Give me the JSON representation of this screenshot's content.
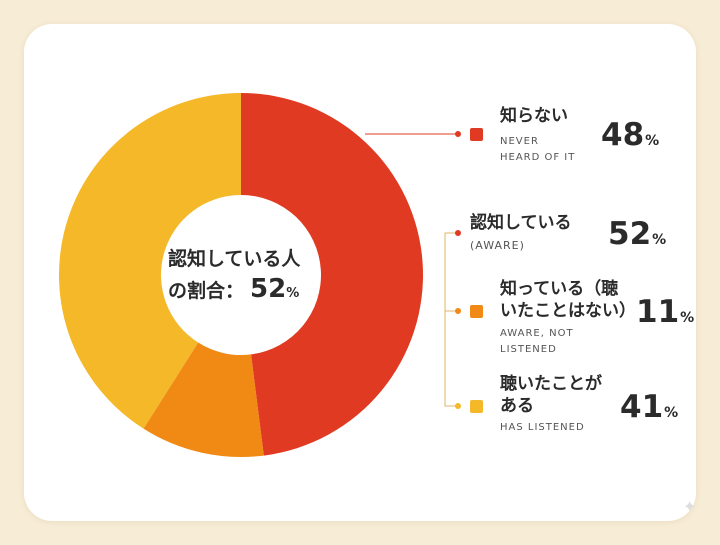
{
  "center": {
    "line1": "認知している人",
    "line2": "の割合：",
    "value": "52",
    "unit": "%"
  },
  "colors": {
    "never": "#e13a22",
    "aware_not_listened": "#f08a14",
    "listened": "#f4b828",
    "background": "#f7ecd6"
  },
  "legend": {
    "never": {
      "title": "知らない",
      "sub": "NEVER\nHEARD OF IT",
      "value": "48",
      "unit": "%"
    },
    "aware": {
      "title": "認知している",
      "sub": "(AWARE)",
      "value": "52",
      "unit": "%"
    },
    "aware_not_listened": {
      "title": "知っている（聴\nいたことはない）",
      "sub": "AWARE, NOT\nLISTENED",
      "value": "11",
      "unit": "%"
    },
    "listened": {
      "title": "聴いたことが\nある",
      "sub": "HAS LISTENED",
      "value": "41",
      "unit": "%"
    }
  },
  "chart_data": {
    "type": "pie",
    "donut": true,
    "slices": [
      {
        "label": "知らない",
        "value": 48,
        "color": "#e13a22"
      },
      {
        "label": "知っている（聴いたことはない）",
        "value": 11,
        "color": "#f08a14"
      },
      {
        "label": "聴いたことがある",
        "value": 41,
        "color": "#f4b828"
      }
    ],
    "center_text": "認知している人の割合：52%",
    "legend_position": "right"
  }
}
